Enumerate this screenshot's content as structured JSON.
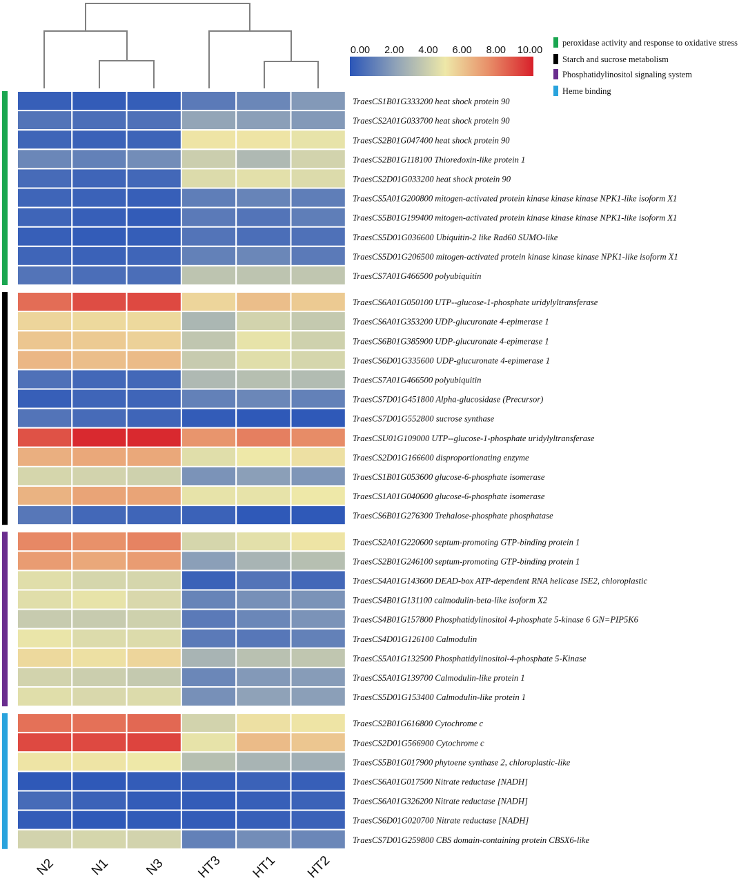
{
  "chart_data": {
    "type": "heatmap",
    "title": "",
    "columns": [
      "N2",
      "N1",
      "N3",
      "HT3",
      "HT1",
      "HT2"
    ],
    "colorbar": {
      "min": 0,
      "max": 10,
      "ticks": [
        "0.00",
        "2.00",
        "4.00",
        "6.00",
        "8.00",
        "10.00"
      ],
      "stops": [
        {
          "value": 0,
          "color": "#2b56b8"
        },
        {
          "value": 2.5,
          "color": "#8fa2b8"
        },
        {
          "value": 5.2,
          "color": "#eee8a8"
        },
        {
          "value": 7.5,
          "color": "#e8916a"
        },
        {
          "value": 10,
          "color": "#d8202a"
        }
      ]
    },
    "legend": [
      {
        "label": "peroxidase activity and response to oxidative stress",
        "color": "#1aa650"
      },
      {
        "label": "Starch and sucrose metabolism",
        "color": "#000000"
      },
      {
        "label": "Phosphatidylinositol signaling system",
        "color": "#6a2d8e"
      },
      {
        "label": "Heme binding",
        "color": "#29a3dd"
      }
    ],
    "groups": [
      {
        "name": "peroxidase activity and response to oxidative stress",
        "color": "#1aa650",
        "rows": [
          {
            "id": "TraesCS1B01G333200",
            "desc": "heat shock protein 90",
            "values": [
              0.3,
              0.2,
              0.25,
              1.2,
              1.6,
              2.2
            ]
          },
          {
            "id": "TraesCS2A01G033700",
            "desc": "heat shock protein 90",
            "values": [
              1.0,
              0.8,
              0.9,
              2.6,
              2.4,
              2.2
            ]
          },
          {
            "id": "TraesCS2B01G047400",
            "desc": "heat shock protein 90",
            "values": [
              0.5,
              0.4,
              0.45,
              5.3,
              5.3,
              5.0
            ]
          },
          {
            "id": "TraesCS2B01G118100",
            "desc": "Thioredoxin-like protein 1",
            "values": [
              1.6,
              1.4,
              1.8,
              4.2,
              3.4,
              4.4
            ]
          },
          {
            "id": "TraesCS2D01G033200",
            "desc": "heat shock protein 90",
            "values": [
              0.7,
              0.5,
              0.6,
              4.7,
              4.9,
              4.7
            ]
          },
          {
            "id": "TraesCS5A01G200800",
            "desc": "mitogen-activated protein kinase kinase kinase NPK1-like isoform X1",
            "values": [
              0.5,
              0.4,
              0.3,
              1.3,
              1.5,
              1.3
            ]
          },
          {
            "id": "TraesCS5B01G199400",
            "desc": "mitogen-activated protein kinase kinase kinase NPK1-like isoform X1",
            "values": [
              0.5,
              0.3,
              0.2,
              1.2,
              1.0,
              1.3
            ]
          },
          {
            "id": "TraesCS5D01G036600",
            "desc": "Ubiquitin-2 like Rad60 SUMO-like",
            "values": [
              0.3,
              0.2,
              0.25,
              1.0,
              0.8,
              0.9
            ]
          },
          {
            "id": "TraesCS5D01G206500",
            "desc": "mitogen-activated protein kinase kinase kinase NPK1-like isoform X1",
            "values": [
              0.5,
              0.4,
              0.5,
              1.4,
              1.6,
              1.2
            ]
          },
          {
            "id": "TraesCS7A01G466500",
            "desc": "polyubiquitin",
            "values": [
              1.0,
              0.8,
              0.8,
              3.8,
              3.8,
              3.9
            ]
          }
        ]
      },
      {
        "name": "Starch and sucrose metabolism",
        "color": "#000000",
        "rows": [
          {
            "id": "TraesCS6A01G050100",
            "desc": "UTP--glucose-1-phosphate uridylyltransferase",
            "values": [
              8.3,
              9.0,
              9.1,
              5.7,
              6.3,
              6.0
            ]
          },
          {
            "id": "TraesCS6A01G353200",
            "desc": "UDP-glucuronate 4-epimerase 1",
            "values": [
              5.7,
              5.6,
              5.6,
              3.3,
              4.4,
              4.0
            ]
          },
          {
            "id": "TraesCS6B01G385900",
            "desc": "UDP-glucuronate 4-epimerase 1",
            "values": [
              6.1,
              6.0,
              5.8,
              3.9,
              5.0,
              4.3
            ]
          },
          {
            "id": "TraesCS6D01G335600",
            "desc": "UDP-glucuronate 4-epimerase 1",
            "values": [
              6.5,
              6.3,
              6.4,
              4.1,
              4.8,
              4.5
            ]
          },
          {
            "id": "TraesCS7A01G466500",
            "desc": "polyubiquitin",
            "values": [
              0.9,
              0.6,
              0.6,
              3.4,
              3.6,
              3.5
            ]
          },
          {
            "id": "TraesCS7D01G451800",
            "desc": "Alpha-glucosidase (Precursor)",
            "values": [
              0.3,
              0.5,
              0.5,
              1.4,
              1.6,
              1.4
            ]
          },
          {
            "id": "TraesCS7D01G552800",
            "desc": "sucrose synthase",
            "values": [
              1.0,
              0.7,
              0.5,
              0.2,
              0.1,
              0.1
            ]
          },
          {
            "id": "TraesCSU01G109000",
            "desc": "UTP--glucose-1-phosphate uridylyltransferase",
            "values": [
              8.9,
              9.8,
              9.8,
              7.4,
              7.9,
              7.6
            ]
          },
          {
            "id": "TraesCS2D01G166600",
            "desc": "disproportionating enzyme",
            "values": [
              6.7,
              6.9,
              6.9,
              4.8,
              5.2,
              5.4
            ]
          },
          {
            "id": "TraesCS1B01G053600",
            "desc": "glucose-6-phosphate isomerase",
            "values": [
              4.5,
              4.4,
              4.3,
              2.0,
              2.4,
              2.1
            ]
          },
          {
            "id": "TraesCS1A01G040600",
            "desc": "glucose-6-phosphate isomerase",
            "values": [
              6.6,
              7.0,
              7.0,
              5.0,
              5.0,
              5.2
            ]
          },
          {
            "id": "TraesCS6B01G276300",
            "desc": "Trehalose-phosphate phosphatase",
            "values": [
              1.1,
              0.6,
              0.5,
              0.4,
              0.1,
              0.1
            ]
          }
        ]
      },
      {
        "name": "Phosphatidylinositol signaling system",
        "color": "#6a2d8e",
        "rows": [
          {
            "id": "TraesCS2A01G220600",
            "desc": "septum-promoting GTP-binding protein 1",
            "values": [
              7.7,
              7.5,
              7.8,
              4.5,
              4.9,
              5.3
            ]
          },
          {
            "id": "TraesCS2B01G246100",
            "desc": "septum-promoting GTP-binding protein 1",
            "values": [
              7.2,
              6.9,
              7.2,
              2.4,
              3.2,
              3.6
            ]
          },
          {
            "id": "TraesCS4A01G143600",
            "desc": "DEAD-box ATP-dependent RNA helicase ISE2, chloroplastic",
            "values": [
              4.8,
              4.5,
              4.5,
              0.4,
              1.0,
              0.6
            ]
          },
          {
            "id": "TraesCS4B01G131100",
            "desc": "calmodulin-beta-like isoform X2",
            "values": [
              4.8,
              5.0,
              4.6,
              1.5,
              1.9,
              2.0
            ]
          },
          {
            "id": "TraesCS4B01G157800",
            "desc": "Phosphatidylinositol 4-phosphate 5-kinase 6 GN=PIP5K6",
            "values": [
              4.1,
              4.1,
              4.3,
              1.2,
              1.6,
              2.0
            ]
          },
          {
            "id": "TraesCS4D01G126100",
            "desc": "Calmodulin",
            "values": [
              5.1,
              4.7,
              4.7,
              1.2,
              1.1,
              1.4
            ]
          },
          {
            "id": "TraesCS5A01G132500",
            "desc": "Phosphatidylinositol-4-phosphate 5-Kinase",
            "values": [
              5.6,
              5.4,
              5.7,
              3.2,
              3.7,
              3.9
            ]
          },
          {
            "id": "TraesCS5A01G139700",
            "desc": "Calmodulin-like protein 1",
            "values": [
              4.4,
              4.2,
              4.0,
              1.6,
              2.2,
              2.3
            ]
          },
          {
            "id": "TraesCS5D01G153400",
            "desc": "Calmodulin-like protein 1",
            "values": [
              4.8,
              4.6,
              4.7,
              1.9,
              2.5,
              2.4
            ]
          }
        ]
      },
      {
        "name": "Heme binding",
        "color": "#29a3dd",
        "rows": [
          {
            "id": "TraesCS2B01G616800",
            "desc": "Cytochrome c",
            "values": [
              8.2,
              8.2,
              8.4,
              4.4,
              5.4,
              5.3
            ]
          },
          {
            "id": "TraesCS2D01G566900",
            "desc": "Cytochrome c",
            "values": [
              9.1,
              9.1,
              9.2,
              5.0,
              6.4,
              6.1
            ]
          },
          {
            "id": "TraesCS5B01G017900",
            "desc": "phytoene synthase 2, chloroplastic-like",
            "values": [
              5.3,
              5.3,
              5.2,
              3.6,
              3.2,
              3.0
            ]
          },
          {
            "id": "TraesCS6A01G017500",
            "desc": "Nitrate reductase [NADH]",
            "values": [
              0.1,
              0.1,
              0.2,
              0.3,
              0.4,
              0.3
            ]
          },
          {
            "id": "TraesCS6A01G326200",
            "desc": "Nitrate reductase [NADH]",
            "values": [
              0.7,
              0.4,
              0.2,
              0.2,
              0.3,
              0.4
            ]
          },
          {
            "id": "TraesCS6D01G020700",
            "desc": "Nitrate reductase [NADH]",
            "values": [
              0.2,
              0.1,
              0.15,
              0.2,
              0.3,
              0.4
            ]
          },
          {
            "id": "TraesCS7D01G259800",
            "desc": "CBS domain-containing protein CBSX6-like",
            "values": [
              4.4,
              4.5,
              4.4,
              1.4,
              1.8,
              1.6
            ]
          }
        ]
      }
    ]
  }
}
